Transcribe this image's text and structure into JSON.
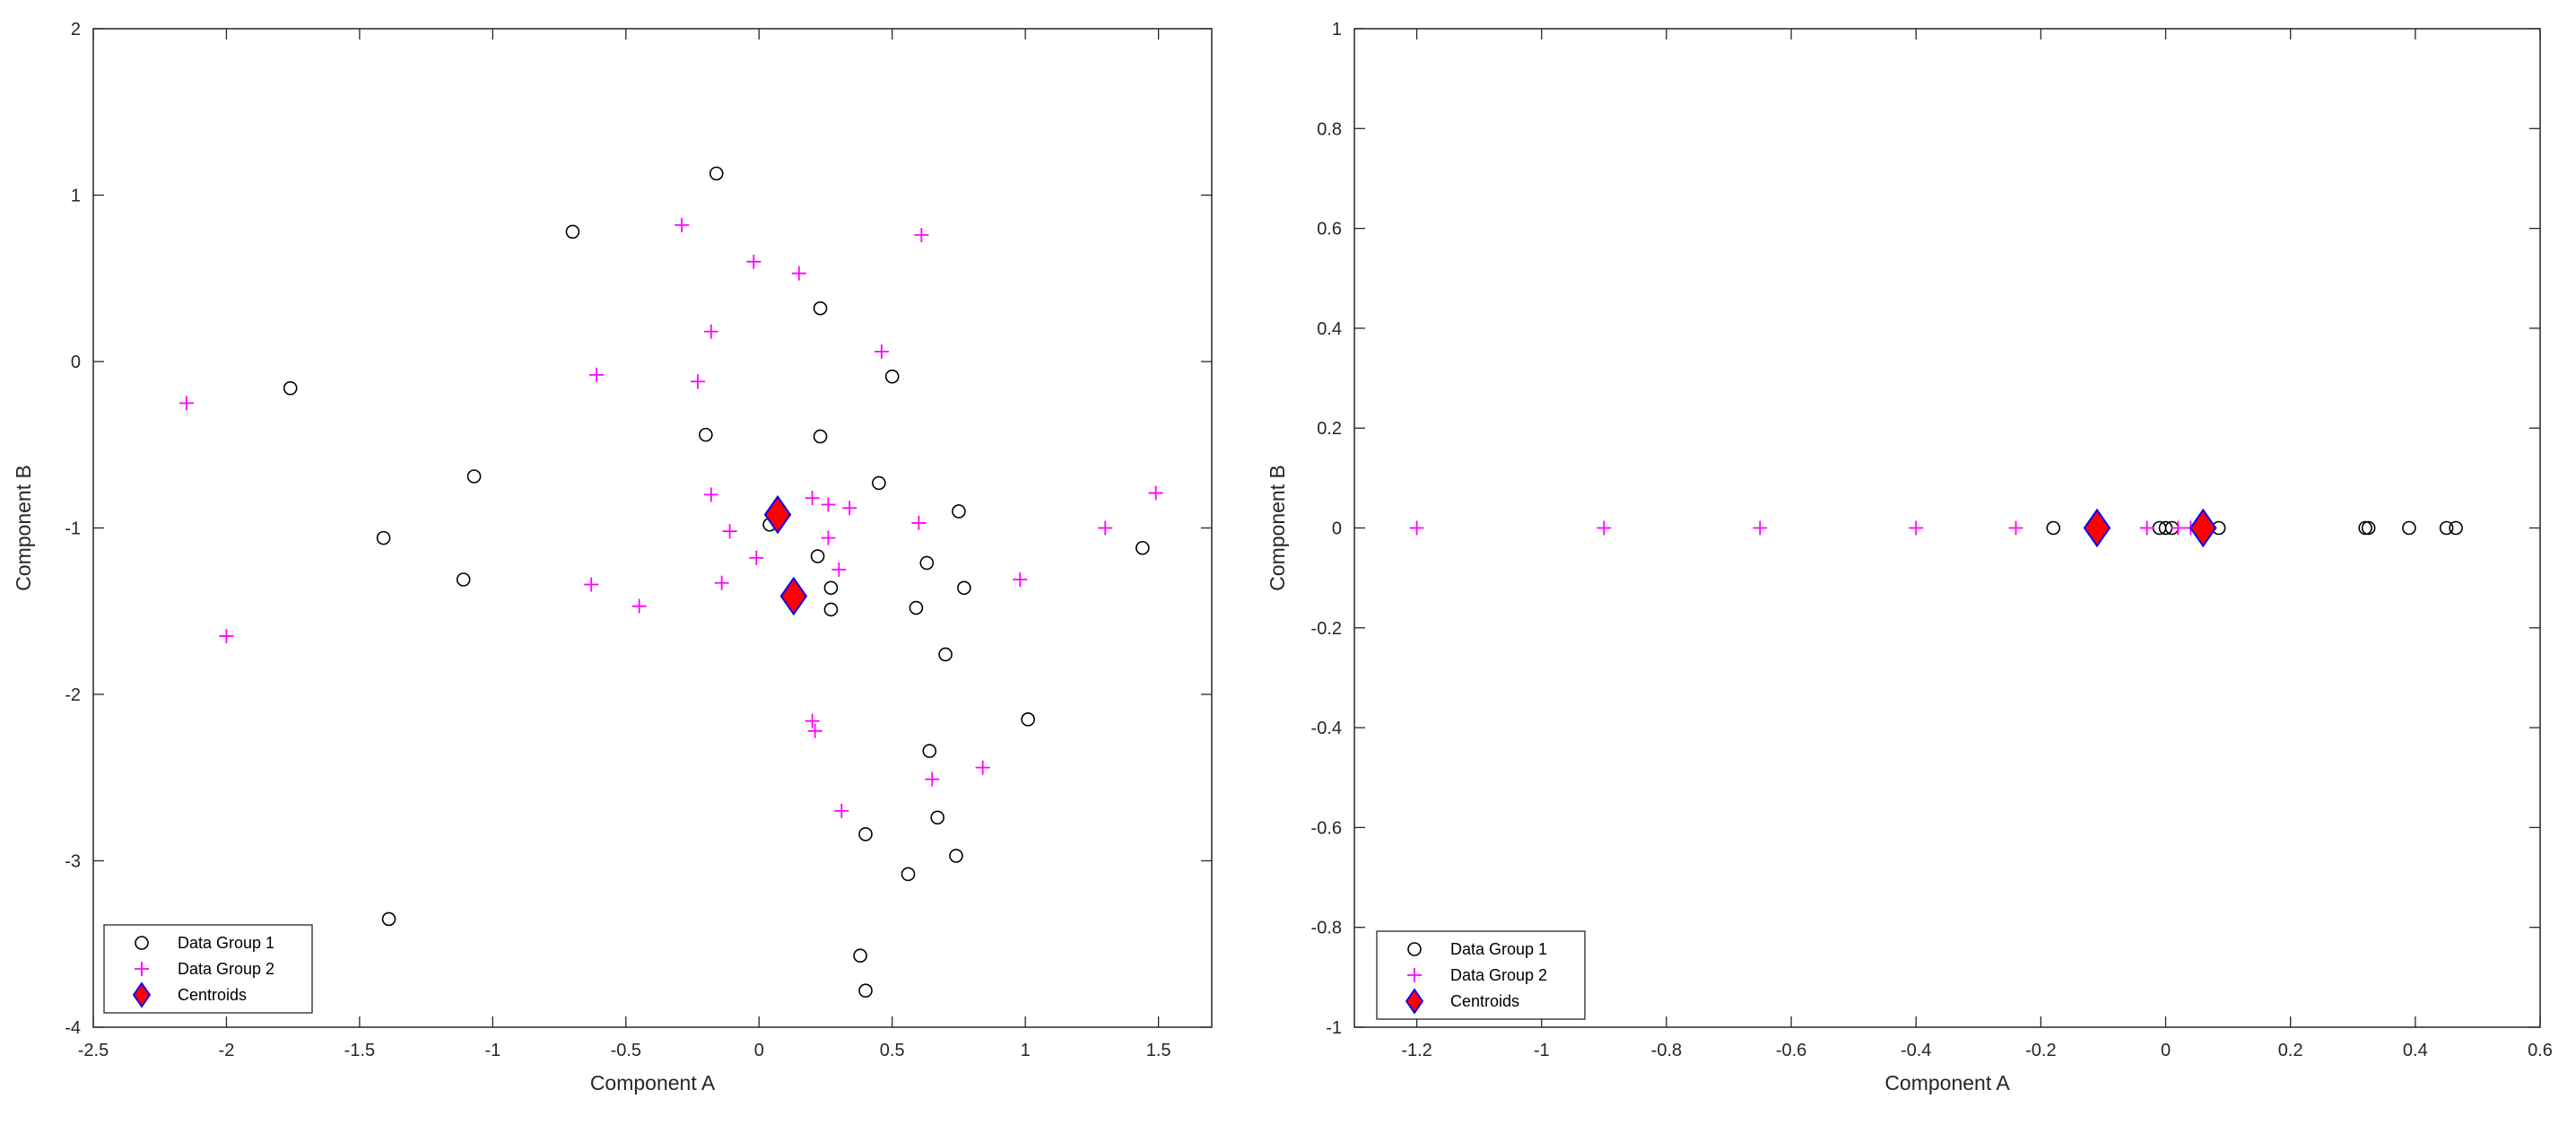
{
  "chart_data": [
    {
      "type": "scatter",
      "xlabel": "Component A",
      "ylabel": "Component B",
      "xlim": [
        -2.5,
        1.7
      ],
      "ylim": [
        -4,
        2
      ],
      "xticks": [
        -2.5,
        -2,
        -1.5,
        -1,
        -0.5,
        0,
        0.5,
        1,
        1.5
      ],
      "xtick_labels": [
        "-2.5",
        "-2",
        "-1.5",
        "-1",
        "-0.5",
        "0",
        "0.5",
        "1",
        "1.5"
      ],
      "yticks": [
        -4,
        -3,
        -2,
        -1,
        0,
        1,
        2
      ],
      "ytick_labels": [
        "-4",
        "-3",
        "-2",
        "-1",
        "0",
        "1",
        "2"
      ],
      "grid": false,
      "legend_position": "bottom-left",
      "series": [
        {
          "name": "Data Group 1",
          "marker": "circle",
          "color": "#000000",
          "points": [
            [
              -0.16,
              1.13
            ],
            [
              -0.7,
              0.78
            ],
            [
              0.23,
              0.32
            ],
            [
              -1.76,
              -0.16
            ],
            [
              0.5,
              -0.09
            ],
            [
              -0.2,
              -0.44
            ],
            [
              0.23,
              -0.45
            ],
            [
              -1.07,
              -0.69
            ],
            [
              0.45,
              -0.73
            ],
            [
              0.75,
              -0.9
            ],
            [
              -1.41,
              -1.06
            ],
            [
              0.04,
              -0.98
            ],
            [
              0.22,
              -1.17
            ],
            [
              0.63,
              -1.21
            ],
            [
              -1.11,
              -1.31
            ],
            [
              0.27,
              -1.36
            ],
            [
              0.77,
              -1.36
            ],
            [
              0.59,
              -1.48
            ],
            [
              0.27,
              -1.49
            ],
            [
              0.7,
              -1.76
            ],
            [
              1.01,
              -2.15
            ],
            [
              0.64,
              -2.34
            ],
            [
              0.67,
              -2.74
            ],
            [
              0.4,
              -2.84
            ],
            [
              0.74,
              -2.97
            ],
            [
              0.56,
              -3.08
            ],
            [
              -1.39,
              -3.35
            ],
            [
              0.38,
              -3.57
            ],
            [
              0.4,
              -3.78
            ],
            [
              1.44,
              -1.12
            ]
          ]
        },
        {
          "name": "Data Group 2",
          "marker": "plus",
          "color": "#ff00ff",
          "points": [
            [
              -0.29,
              0.82
            ],
            [
              0.61,
              0.76
            ],
            [
              -0.02,
              0.6
            ],
            [
              0.15,
              0.53
            ],
            [
              -0.18,
              0.18
            ],
            [
              0.46,
              0.06
            ],
            [
              -0.61,
              -0.08
            ],
            [
              -0.23,
              -0.12
            ],
            [
              -2.15,
              -0.25
            ],
            [
              -0.18,
              -0.8
            ],
            [
              0.2,
              -0.82
            ],
            [
              0.26,
              -0.86
            ],
            [
              0.34,
              -0.88
            ],
            [
              1.49,
              -0.79
            ],
            [
              -0.11,
              -1.02
            ],
            [
              0.6,
              -0.97
            ],
            [
              1.3,
              -1.0
            ],
            [
              0.26,
              -1.06
            ],
            [
              -0.01,
              -1.18
            ],
            [
              0.3,
              -1.25
            ],
            [
              -0.14,
              -1.33
            ],
            [
              -0.63,
              -1.34
            ],
            [
              0.98,
              -1.31
            ],
            [
              -0.45,
              -1.47
            ],
            [
              -2.0,
              -1.65
            ],
            [
              0.2,
              -2.16
            ],
            [
              0.21,
              -2.22
            ],
            [
              0.84,
              -2.44
            ],
            [
              0.65,
              -2.51
            ],
            [
              0.31,
              -2.7
            ]
          ]
        },
        {
          "name": "Centroids",
          "marker": "diamond",
          "color": "#ff0000",
          "edge_color": "#0000ff",
          "points": [
            [
              0.07,
              -0.92
            ],
            [
              0.13,
              -1.41
            ]
          ]
        }
      ]
    },
    {
      "type": "scatter",
      "xlabel": "Component A",
      "ylabel": "Component B",
      "xlim": [
        -1.3,
        0.6
      ],
      "ylim": [
        -1,
        1
      ],
      "xticks": [
        -1.2,
        -1,
        -0.8,
        -0.6,
        -0.4,
        -0.2,
        0,
        0.2,
        0.4,
        0.6
      ],
      "xtick_labels": [
        "-1.2",
        "-1",
        "-0.8",
        "-0.6",
        "-0.4",
        "-0.2",
        "0",
        "0.2",
        "0.4",
        "0.6"
      ],
      "yticks": [
        -1,
        -0.8,
        -0.6,
        -0.4,
        -0.2,
        0,
        0.2,
        0.4,
        0.6,
        0.8,
        1
      ],
      "ytick_labels": [
        "-1",
        "-0.8",
        "-0.6",
        "-0.4",
        "-0.2",
        "0",
        "0.2",
        "0.4",
        "0.6",
        "0.8",
        "1"
      ],
      "grid": false,
      "legend_position": "bottom-left",
      "series": [
        {
          "name": "Data Group 1",
          "marker": "circle",
          "color": "#000000",
          "points": [
            [
              -0.18,
              0
            ],
            [
              -0.01,
              0
            ],
            [
              0,
              0
            ],
            [
              0.01,
              0
            ],
            [
              0.085,
              0
            ],
            [
              0.32,
              0
            ],
            [
              0.325,
              0
            ],
            [
              0.39,
              0
            ],
            [
              0.45,
              0
            ],
            [
              0.465,
              0
            ]
          ]
        },
        {
          "name": "Data Group 2",
          "marker": "plus",
          "color": "#ff00ff",
          "points": [
            [
              -1.2,
              0
            ],
            [
              -0.9,
              0
            ],
            [
              -0.65,
              0
            ],
            [
              -0.4,
              0
            ],
            [
              -0.24,
              0
            ],
            [
              -0.03,
              0
            ],
            [
              0.02,
              0
            ],
            [
              0.04,
              0
            ]
          ]
        },
        {
          "name": "Centroids",
          "marker": "diamond",
          "color": "#ff0000",
          "edge_color": "#0000ff",
          "points": [
            [
              -0.11,
              0
            ],
            [
              0.06,
              0
            ]
          ]
        }
      ]
    }
  ]
}
